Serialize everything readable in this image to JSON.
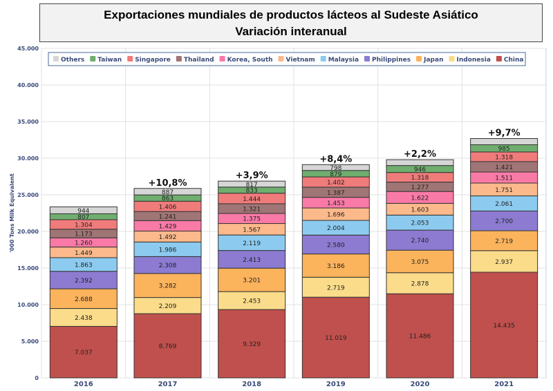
{
  "chart_data": {
    "type": "bar",
    "stacked": true,
    "title": "Exportaciones mundiales de productos lácteos al Sudeste Asiático",
    "subtitle": "Variación interanual",
    "ylabel": "'000 Tons Milk Equivalent",
    "xlabel": "",
    "ylim": [
      0,
      45000
    ],
    "yticks": [
      "0",
      "5.000",
      "10.000",
      "15.000",
      "20.000",
      "25.000",
      "30.000",
      "35.000",
      "40.000",
      "45.000"
    ],
    "grid": true,
    "legend_position": "top",
    "categories": [
      "2016",
      "2017",
      "2018",
      "2019",
      "2020",
      "2021"
    ],
    "growth_labels": [
      "",
      "+10,8%",
      "+3,9%",
      "+8,4%",
      "+2,2%",
      "+9,7%"
    ],
    "legend_order": [
      "Others",
      "Taiwan",
      "Singapore",
      "Thailand",
      "Korea, South",
      "Vietnam",
      "Malaysia",
      "Philippines",
      "Japan",
      "Indonesia",
      "China"
    ],
    "series": [
      {
        "name": "China",
        "color": "#c0504d",
        "values": [
          7037,
          8769,
          9329,
          11019,
          11486,
          14435
        ]
      },
      {
        "name": "Indonesia",
        "color": "#fbdc8a",
        "values": [
          2438,
          2209,
          2453,
          2719,
          2878,
          2937
        ]
      },
      {
        "name": "Japan",
        "color": "#fbb35c",
        "values": [
          2688,
          3282,
          3201,
          3186,
          3075,
          2719
        ]
      },
      {
        "name": "Philippines",
        "color": "#8c7bd1",
        "values": [
          2392,
          2308,
          2413,
          2580,
          2740,
          2700
        ]
      },
      {
        "name": "Malaysia",
        "color": "#8ccbef",
        "values": [
          1863,
          1986,
          2119,
          2004,
          2053,
          2061
        ]
      },
      {
        "name": "Vietnam",
        "color": "#fcb98b",
        "values": [
          1449,
          1492,
          1567,
          1696,
          1603,
          1751
        ]
      },
      {
        "name": "Korea, South",
        "color": "#f97aa7",
        "values": [
          1260,
          1429,
          1375,
          1453,
          1622,
          1511
        ]
      },
      {
        "name": "Thailand",
        "color": "#a07575",
        "values": [
          1173,
          1241,
          1321,
          1387,
          1277,
          1421
        ]
      },
      {
        "name": "Singapore",
        "color": "#f07b7b",
        "values": [
          1304,
          1406,
          1444,
          1402,
          1318,
          1318
        ]
      },
      {
        "name": "Taiwan",
        "color": "#6fae6f",
        "values": [
          807,
          863,
          833,
          879,
          946,
          985
        ]
      },
      {
        "name": "Others",
        "color": "#d6d6d6",
        "values": [
          944,
          887,
          817,
          798,
          800,
          850
        ],
        "labels_shown": [
          true,
          true,
          true,
          true,
          false,
          false
        ]
      }
    ]
  }
}
